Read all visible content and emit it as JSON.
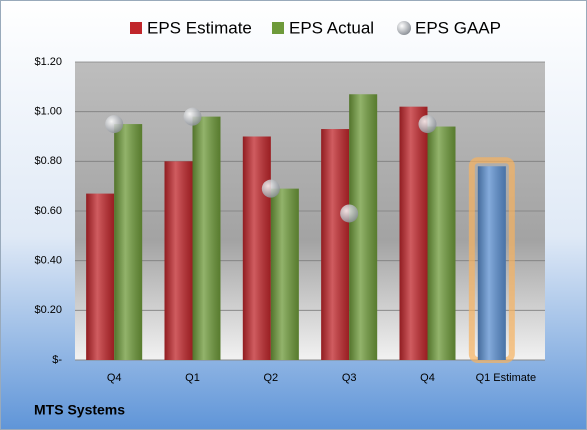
{
  "chart_data": {
    "type": "bar",
    "title": "MTS Systems",
    "categories": [
      "Q4",
      "Q1",
      "Q2",
      "Q3",
      "Q4",
      "Q1 Estimate"
    ],
    "series": [
      {
        "name": "EPS Estimate",
        "type": "bar",
        "color": "#c0262b",
        "colors": [
          "#c0262b",
          "#c0262b",
          "#c0262b",
          "#c0262b",
          "#c0262b",
          "#5b8fd0"
        ],
        "values": [
          0.67,
          0.8,
          0.9,
          0.93,
          1.02,
          0.78
        ]
      },
      {
        "name": "EPS Actual",
        "type": "bar",
        "color": "#6e9a3a",
        "values": [
          0.95,
          0.98,
          0.69,
          1.07,
          0.94,
          null
        ]
      },
      {
        "name": "EPS GAAP",
        "type": "scatter",
        "color": "#b8bcc2",
        "values": [
          0.95,
          0.98,
          0.69,
          0.59,
          0.95,
          null
        ]
      }
    ],
    "ylim": [
      0,
      1.2
    ],
    "yticks": [
      {
        "value": 0,
        "label": "$-"
      },
      {
        "value": 0.2,
        "label": "$0.20"
      },
      {
        "value": 0.4,
        "label": "$0.40"
      },
      {
        "value": 0.6,
        "label": "$0.60"
      },
      {
        "value": 0.8,
        "label": "$0.80"
      },
      {
        "value": 1.0,
        "label": "$1.00"
      },
      {
        "value": 1.2,
        "label": "$1.20"
      }
    ],
    "grid": true,
    "legend": "top"
  }
}
